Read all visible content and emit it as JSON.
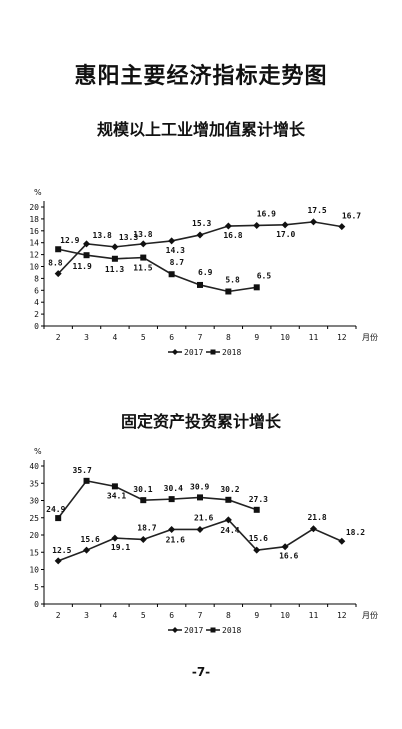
{
  "page": {
    "main_title": "惠阳主要经济指标走势图",
    "page_number": "-7-"
  },
  "chart_data": [
    {
      "type": "line",
      "title": "规模以上工业增加值累计增长",
      "y_unit": "%",
      "x_unit": "月份",
      "ylim": [
        0,
        20
      ],
      "y_ticks": [
        0,
        2,
        4,
        6,
        8,
        10,
        12,
        14,
        16,
        18,
        20
      ],
      "categories": [
        "2",
        "3",
        "4",
        "5",
        "6",
        "7",
        "8",
        "9",
        "10",
        "11",
        "12"
      ],
      "series": [
        {
          "name": "2017",
          "marker": "diamond",
          "values": [
            8.8,
            13.8,
            13.3,
            13.8,
            14.3,
            15.3,
            16.8,
            16.9,
            17.0,
            17.5,
            16.7
          ]
        },
        {
          "name": "2018",
          "marker": "square",
          "values": [
            12.9,
            11.9,
            11.3,
            11.5,
            8.7,
            6.9,
            5.8,
            6.5,
            null,
            null,
            null
          ]
        }
      ],
      "legend": [
        "2017",
        "2018"
      ],
      "legend_position": "bottom"
    },
    {
      "type": "line",
      "title": "固定资产投资累计增长",
      "y_unit": "%",
      "x_unit": "月份",
      "ylim": [
        0,
        40
      ],
      "y_ticks": [
        0,
        5,
        10,
        15,
        20,
        25,
        30,
        35,
        40
      ],
      "categories": [
        "2",
        "3",
        "4",
        "5",
        "6",
        "7",
        "8",
        "9",
        "10",
        "11",
        "12"
      ],
      "series": [
        {
          "name": "2017",
          "marker": "diamond",
          "values": [
            12.5,
            15.6,
            19.1,
            18.7,
            21.6,
            21.6,
            24.4,
            15.6,
            16.6,
            21.8,
            18.2
          ]
        },
        {
          "name": "2018",
          "marker": "square",
          "values": [
            24.9,
            35.7,
            34.1,
            30.1,
            30.4,
            30.9,
            30.2,
            27.3,
            null,
            null,
            null
          ]
        }
      ],
      "legend": [
        "2017",
        "2018"
      ],
      "legend_position": "bottom"
    }
  ]
}
